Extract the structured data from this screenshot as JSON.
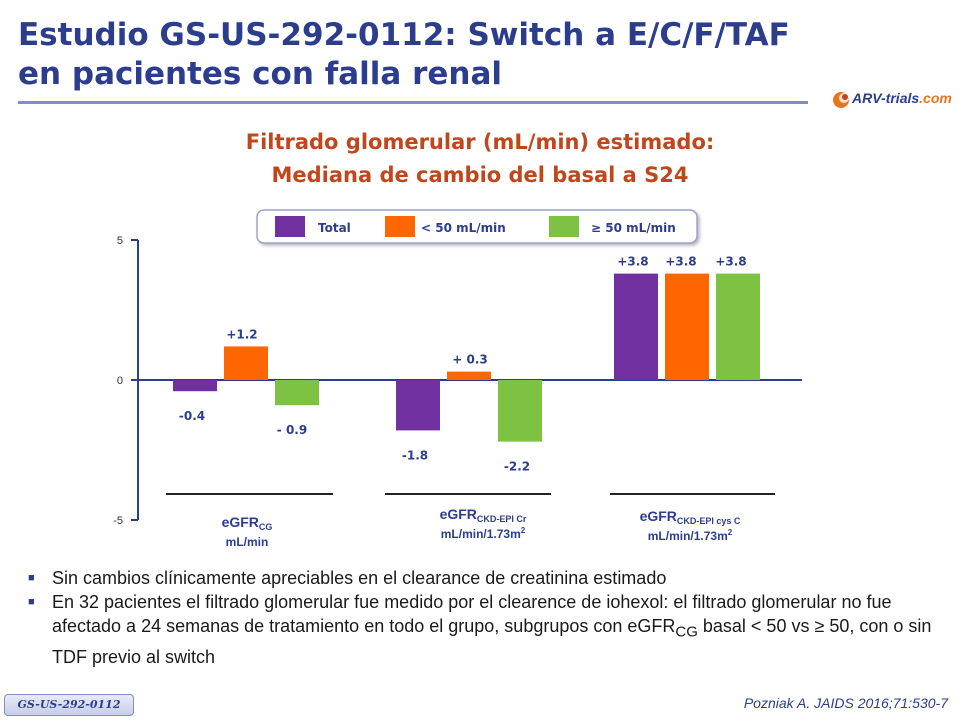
{
  "title": {
    "line1": "Estudio GS-US-292-0112: Switch a E/C/F/TAF",
    "line2": "en pacientes con falla renal"
  },
  "logo": {
    "brand": "ARV-trials",
    "domain": ".com"
  },
  "chart_data": {
    "type": "bar",
    "title_line1": "Filtrado glomerular (mL/min) estimado:",
    "title_line2": "Mediana de cambio del basal a S24",
    "ylim": [
      -5,
      5
    ],
    "yticks": [
      "5",
      "0",
      "-5"
    ],
    "legend_position": "top",
    "series": [
      {
        "name": "Total",
        "color": "#7030a0",
        "values": [
          -0.4,
          -1.8,
          3.8
        ],
        "labels": [
          "-0.4",
          "-1.8",
          "+3.8"
        ]
      },
      {
        "name": "< 50 mL/min",
        "color": "#ff6600",
        "values": [
          1.2,
          0.3,
          3.8
        ],
        "labels": [
          "+1.2",
          "+ 0.3",
          "+3.8"
        ]
      },
      {
        "name": "≥ 50 mL/min",
        "color": "#7dc242",
        "values": [
          -0.9,
          -2.2,
          3.8
        ],
        "labels": [
          "- 0.9",
          "-2.2",
          "+3.8"
        ]
      }
    ],
    "categories": [
      {
        "main": "eGFR",
        "sub": "CG",
        "unit": "mL/min",
        "sup": ""
      },
      {
        "main": "eGFR",
        "sub": "CKD-EPI Cr",
        "unit": "mL/min/1.73m",
        "sup": "2"
      },
      {
        "main": "eGFR",
        "sub": "CKD-EPI cys C",
        "unit": "mL/min/1.73m",
        "sup": "2"
      }
    ]
  },
  "bullets": {
    "item1": "Sin cambios clínicamente apreciables en el clearance de creatinina estimado",
    "item2_pre": "En 32 pacientes el filtrado glomerular fue medido por el clearence de iohexol: el filtrado glomerular no fue afectado a 24 semanas de tratamiento en todo el grupo, subgrupos con eGFR",
    "item2_sub": "CG",
    "item2_post": " basal < 50 vs ≥ 50, con o sin TDF previo al switch"
  },
  "footer": {
    "study_tag": "GS-US-292-0112",
    "citation": "Pozniak A. JAIDS 2016;71:530-7"
  },
  "colors": {
    "title": "#2b3d8c",
    "chart_title": "#c0471c",
    "accent": "#7f8fc6"
  }
}
